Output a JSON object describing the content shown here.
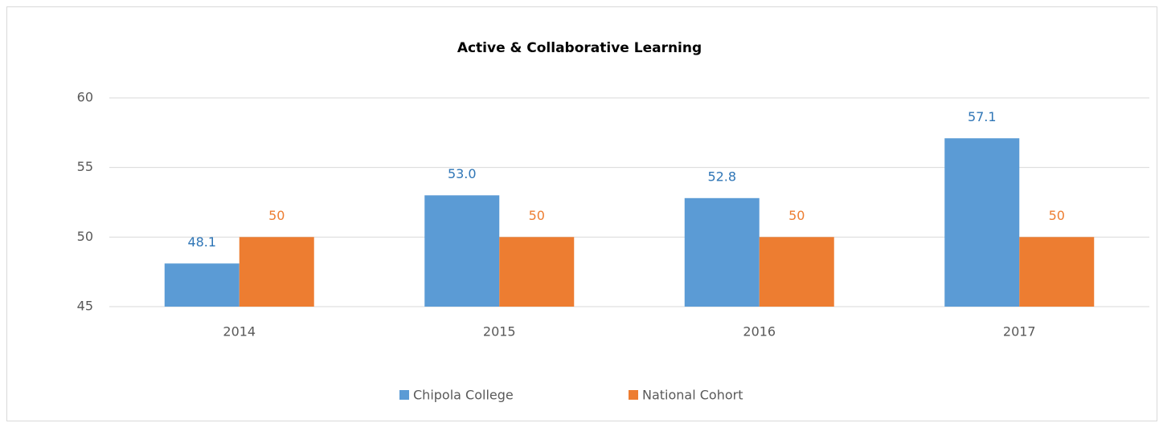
{
  "chart_data": {
    "type": "bar",
    "title": "Active & Collaborative Learning",
    "categories": [
      "2014",
      "2015",
      "2016",
      "2017"
    ],
    "series": [
      {
        "name": "Chipola College",
        "color": "#5b9bd5",
        "values": [
          48.1,
          53.0,
          52.8,
          57.1
        ],
        "value_labels": [
          "48.1",
          "53.0",
          "52.8",
          "57.1"
        ]
      },
      {
        "name": "National Cohort",
        "color": "#ed7d31",
        "values": [
          50,
          50,
          50,
          50
        ]
      }
    ],
    "ylim": [
      45,
      60
    ],
    "yticks": [
      45,
      50,
      55,
      60
    ],
    "grid": true,
    "legend": "bottom"
  }
}
